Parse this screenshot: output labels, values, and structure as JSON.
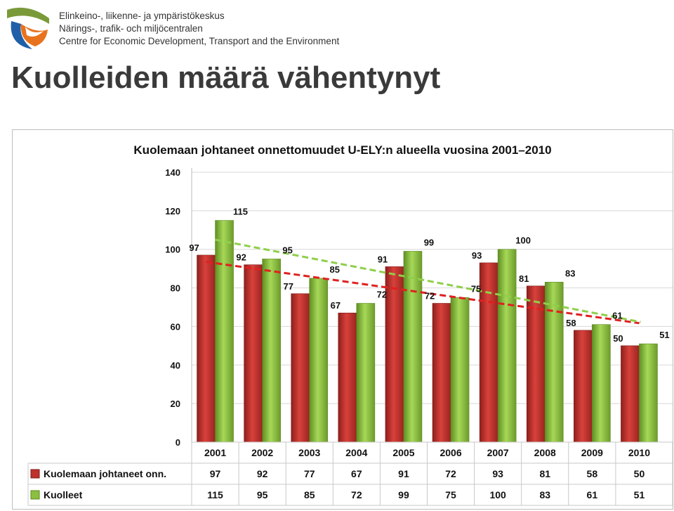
{
  "header": {
    "org_fi": "Elinkeino-, liikenne- ja ympäristökeskus",
    "org_sv": "Närings-, trafik- och miljöcentralen",
    "org_en": "Centre for Economic Development, Transport and the Environment",
    "logo_icon": "ely-centre-logo-icon"
  },
  "slide": {
    "title": "Kuolleiden määrä vähentynyt"
  },
  "colors": {
    "red": "#c0302c",
    "green": "#8cbf3f",
    "red_trend": "#e02020",
    "green_trend": "#8fcf4a"
  },
  "chart_data": {
    "type": "bar",
    "title": "Kuolemaan johtaneet onnettomuudet U-ELY:n alueella vuosina 2001–2010",
    "categories": [
      "2001",
      "2002",
      "2003",
      "2004",
      "2005",
      "2006",
      "2007",
      "2008",
      "2009",
      "2010"
    ],
    "series": [
      {
        "name": "Kuolemaan johtaneet onn.",
        "values": [
          97,
          92,
          77,
          67,
          91,
          72,
          93,
          81,
          58,
          50
        ],
        "color": "#c0302c"
      },
      {
        "name": "Kuolleet",
        "values": [
          115,
          95,
          85,
          72,
          99,
          75,
          100,
          83,
          61,
          51
        ],
        "color": "#8cbf3f"
      }
    ],
    "ylim": [
      0,
      140
    ],
    "yticks": [
      "0",
      "20",
      "40",
      "60",
      "80",
      "100",
      "120",
      "140"
    ],
    "trendlines": [
      {
        "series": "Kuolemaan johtaneet onn.",
        "from": 93.5,
        "to": 61.7,
        "color": "#e02020"
      },
      {
        "series": "Kuolleet",
        "from": 105.0,
        "to": 62.3,
        "color": "#8fcf4a"
      }
    ],
    "data_table": true,
    "legend": "data-table-left",
    "grid": true
  }
}
